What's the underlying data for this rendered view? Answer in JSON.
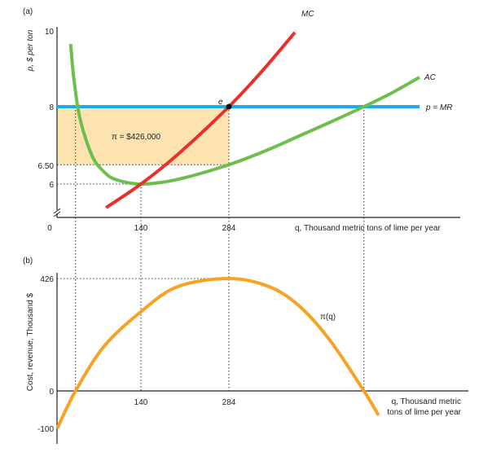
{
  "chart_data": [
    {
      "panel_label": "(a)",
      "type": "line",
      "ylabel": "p, $ per ton",
      "xlabel": "q, Thousand metric tons of lime per year",
      "x_ticks": [
        "0",
        "140",
        "284"
      ],
      "y_ticks": [
        "6",
        "6.50",
        "8",
        "10"
      ],
      "y_axis_break": true,
      "xlim": [
        0,
        656
      ],
      "ylim": [
        5.15,
        10.2
      ],
      "series": [
        {
          "name": "MC",
          "color": "#e8312a",
          "points": [
            [
              83,
              5.39
            ],
            [
              140,
              6
            ],
            [
              200,
              6.76
            ],
            [
              284,
              8
            ],
            [
              340,
              8.95
            ],
            [
              392,
              9.92
            ]
          ]
        },
        {
          "name": "AC",
          "color": "#6cbf4c",
          "points": [
            [
              25,
              9.62
            ],
            [
              30,
              8.76
            ],
            [
              40,
              7.71
            ],
            [
              60,
              6.73
            ],
            [
              80,
              6.31
            ],
            [
              100,
              6.11
            ],
            [
              140,
              6
            ],
            [
              200,
              6.12
            ],
            [
              284,
              6.5
            ],
            [
              350,
              6.9
            ],
            [
              400,
              7.25
            ],
            [
              450,
              7.6
            ],
            [
              505,
              8
            ],
            [
              550,
              8.35
            ],
            [
              596,
              8.76
            ]
          ]
        },
        {
          "name": "p = MR",
          "color": "#1aaee8",
          "value": 8
        }
      ],
      "profit_area": {
        "label": "π = $426,000",
        "q": 284,
        "p_top": 8,
        "p_bottom": 6.5,
        "color": "#fce3b0"
      },
      "equilibrium": {
        "label": "e",
        "q": 284,
        "p": 8
      },
      "guides": {
        "vertical_q": [
          33,
          140,
          284,
          505
        ],
        "horizontal_p": [
          6.5,
          6
        ]
      }
    },
    {
      "panel_label": "(b)",
      "type": "line",
      "ylabel": "Cost, revenue, Thousand $",
      "xlabel_lines": [
        "q, Thousand metric",
        "tons of lime per year"
      ],
      "x_ticks": [
        "140",
        "284"
      ],
      "y_ticks": [
        "-100",
        "0",
        "426"
      ],
      "ylim": [
        -100,
        426
      ],
      "series": [
        {
          "name": "π(q)",
          "color": "#f7a125",
          "points": [
            [
              3,
              -100
            ],
            [
              33,
              0
            ],
            [
              80,
              170
            ],
            [
              140,
              300
            ],
            [
              200,
              395
            ],
            [
              284,
              426
            ],
            [
              350,
              395
            ],
            [
              400,
              320
            ],
            [
              450,
              190
            ],
            [
              505,
              0
            ],
            [
              529,
              -65
            ]
          ]
        }
      ]
    }
  ]
}
